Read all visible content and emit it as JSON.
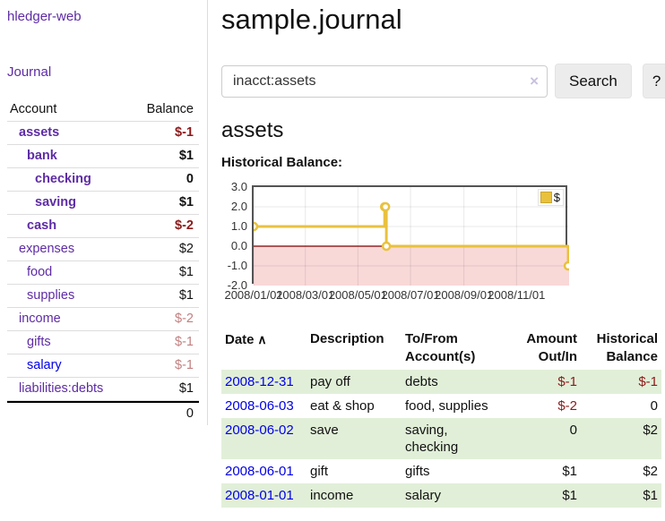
{
  "app": {
    "brand": "hledger-web",
    "nav": {
      "journal": "Journal"
    }
  },
  "sidebar": {
    "headers": {
      "account": "Account",
      "balance": "Balance"
    },
    "accounts": [
      {
        "name": "assets",
        "indent": 0,
        "balance": "$-1",
        "bold": true,
        "negative": "strong"
      },
      {
        "name": "bank",
        "indent": 1,
        "balance": "$1",
        "bold": true
      },
      {
        "name": "checking",
        "indent": 2,
        "balance": "0",
        "bold": true
      },
      {
        "name": "saving",
        "indent": 2,
        "balance": "$1",
        "bold": true
      },
      {
        "name": "cash",
        "indent": 1,
        "balance": "$-2",
        "bold": true,
        "negative": "strong"
      },
      {
        "name": "expenses",
        "indent": 0,
        "balance": "$2"
      },
      {
        "name": "food",
        "indent": 1,
        "balance": "$1"
      },
      {
        "name": "supplies",
        "indent": 1,
        "balance": "$1"
      },
      {
        "name": "income",
        "indent": 0,
        "balance": "$-2",
        "negative": "dim"
      },
      {
        "name": "gifts",
        "indent": 1,
        "balance": "$-1",
        "negative": "dim"
      },
      {
        "name": "salary",
        "indent": 1,
        "balance": "$-1",
        "negative": "dim",
        "blue_link": true
      },
      {
        "name": "liabilities:debts",
        "indent": 0,
        "balance": "$1"
      }
    ],
    "total": "0"
  },
  "header": {
    "title": "sample.journal"
  },
  "search": {
    "value": "inacct:assets",
    "clear_icon": "×",
    "button_label": "Search",
    "help_label": "?"
  },
  "account_page": {
    "heading": "assets",
    "chart_label": "Historical Balance:"
  },
  "chart_data": {
    "type": "line",
    "step": true,
    "title": "Historical Balance",
    "series": [
      {
        "name": "$",
        "color": "#e9c13d",
        "points": [
          {
            "date": "2008-01-01",
            "value": 1
          },
          {
            "date": "2008-06-01",
            "value": 2
          },
          {
            "date": "2008-06-02",
            "value": 2
          },
          {
            "date": "2008-06-03",
            "value": 0
          },
          {
            "date": "2008-12-31",
            "value": -1
          }
        ]
      }
    ],
    "x_start": "2008-01-01",
    "x_end": "2009-01-01",
    "xticks": [
      "2008/01/01",
      "2008/03/01",
      "2008/05/01",
      "2008/07/01",
      "2008/09/01",
      "2008/11/01"
    ],
    "yticks": [
      3.0,
      2.0,
      1.0,
      0.0,
      -1.0,
      -2.0
    ],
    "ylim": [
      -2,
      3
    ],
    "legend": {
      "label": "$",
      "position": "top-right"
    },
    "grid": true,
    "negative_region_fill": "#f9d8d8",
    "zero_line_color": "#7c0000"
  },
  "register": {
    "headers": [
      {
        "label": "Date",
        "sort_indicator": "∧",
        "align": "left"
      },
      {
        "label": "Description",
        "align": "left"
      },
      {
        "label": "To/From Account(s)",
        "align": "left"
      },
      {
        "label": "Amount Out/In",
        "align": "right"
      },
      {
        "label": "Historical Balance",
        "align": "right"
      }
    ],
    "rows": [
      {
        "date": "2008-12-31",
        "description": "pay off",
        "accounts": "debts",
        "amount": "$-1",
        "amount_negative": true,
        "balance": "$-1",
        "balance_negative": true,
        "shaded": true
      },
      {
        "date": "2008-06-03",
        "description": "eat & shop",
        "accounts": "food, supplies",
        "amount": "$-2",
        "amount_negative": true,
        "balance": "0",
        "balance_negative": false,
        "shaded": false
      },
      {
        "date": "2008-06-02",
        "description": "save",
        "accounts": "saving, checking",
        "amount": "0",
        "amount_negative": false,
        "balance": "$2",
        "balance_negative": false,
        "shaded": true
      },
      {
        "date": "2008-06-01",
        "description": "gift",
        "accounts": "gifts",
        "amount": "$1",
        "amount_negative": false,
        "balance": "$2",
        "balance_negative": false,
        "shaded": false
      },
      {
        "date": "2008-01-01",
        "description": "income",
        "accounts": "salary",
        "amount": "$1",
        "amount_negative": false,
        "balance": "$1",
        "balance_negative": false,
        "shaded": true
      }
    ]
  },
  "colors": {
    "link_purple": "#5e2ca5",
    "link_blue": "#0000e6",
    "negative_strong": "#8b1a1a",
    "negative_dim": "#c28080",
    "row_stripe_green": "#e1efd8",
    "chart_line": "#e9c13d",
    "chart_negative_fill": "#f9d8d8",
    "chart_zero_line": "#7c0000",
    "chart_border": "#545454"
  }
}
